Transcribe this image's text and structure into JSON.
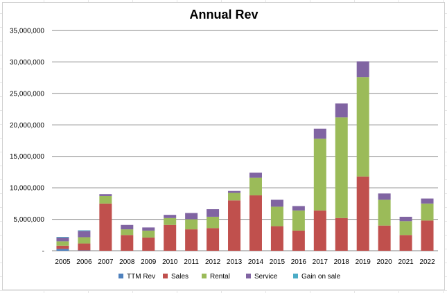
{
  "chart_data": {
    "type": "bar",
    "stacked": true,
    "title": "Annual Rev",
    "xlabel": "",
    "ylabel": "",
    "ylim": [
      0,
      35000000
    ],
    "yticks": [
      "-",
      "5,000,000",
      "10,000,000",
      "15,000,000",
      "20,000,000",
      "25,000,000",
      "30,000,000",
      "35,000,000"
    ],
    "grid": true,
    "legend_position": "bottom",
    "categories": [
      "2005",
      "2006",
      "2007",
      "2008",
      "2009",
      "2010",
      "2011",
      "2012",
      "2013",
      "2014",
      "2015",
      "2016",
      "2017",
      "2018",
      "2019",
      "2020",
      "2021",
      "2022"
    ],
    "series": [
      {
        "name": "TTM Rev",
        "color": "#4f81bd",
        "values": [
          300000,
          50000,
          0,
          0,
          0,
          0,
          0,
          0,
          0,
          0,
          0,
          0,
          0,
          0,
          0,
          0,
          0,
          0
        ]
      },
      {
        "name": "Sales",
        "color": "#c0504d",
        "values": [
          500000,
          1100000,
          7500000,
          2500000,
          2100000,
          4100000,
          3400000,
          3600000,
          8000000,
          8800000,
          3900000,
          3200000,
          6400000,
          5200000,
          11800000,
          4000000,
          2500000,
          4800000
        ]
      },
      {
        "name": "Rental",
        "color": "#9bbb59",
        "values": [
          700000,
          1000000,
          1200000,
          900000,
          1100000,
          1100000,
          1600000,
          1800000,
          1200000,
          2800000,
          3100000,
          3200000,
          11400000,
          16000000,
          15800000,
          4100000,
          2200000,
          2700000
        ]
      },
      {
        "name": "Service",
        "color": "#8064a2",
        "values": [
          600000,
          1000000,
          300000,
          700000,
          500000,
          500000,
          1000000,
          1200000,
          300000,
          800000,
          1100000,
          700000,
          1600000,
          2200000,
          2500000,
          1000000,
          700000,
          800000
        ]
      },
      {
        "name": "Gain on sale",
        "color": "#4bacc6",
        "values": [
          100000,
          100000,
          0,
          0,
          0,
          0,
          0,
          0,
          0,
          0,
          0,
          0,
          0,
          0,
          0,
          0,
          0,
          0
        ]
      }
    ]
  }
}
